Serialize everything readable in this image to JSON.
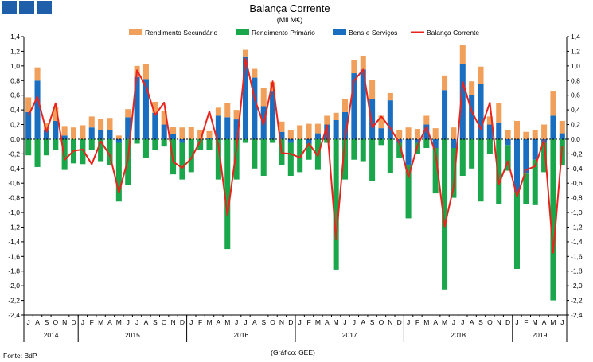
{
  "header": {
    "logo_squares": [
      "#1f5ea8",
      "#1f5ea8",
      "#1f5ea8"
    ]
  },
  "chart_data": {
    "type": "bar",
    "title": "Balança Corrente",
    "subtitle": "(Mil M€)",
    "stacked": true,
    "ylim": [
      -2.4,
      1.4
    ],
    "ytick_step": 0.2,
    "grid": false,
    "legend_position": "top",
    "source": "Fonte: BdP",
    "footnote": "(Gráfico: GEE)",
    "months": [
      "J",
      "A",
      "S",
      "O",
      "N",
      "D",
      "J",
      "F",
      "M",
      "A",
      "M",
      "J",
      "J",
      "A",
      "S",
      "O",
      "N",
      "D",
      "J",
      "F",
      "M",
      "A",
      "M",
      "J",
      "J",
      "A",
      "S",
      "O",
      "N",
      "D",
      "J",
      "F",
      "M",
      "A",
      "M",
      "J",
      "J",
      "A",
      "S",
      "O",
      "N",
      "D",
      "J",
      "F",
      "M",
      "A",
      "M",
      "J",
      "J",
      "A",
      "S",
      "O",
      "N",
      "D",
      "J",
      "F",
      "M",
      "A",
      "M",
      "J"
    ],
    "years": [
      {
        "label": "2014",
        "start": 0,
        "count": 6
      },
      {
        "label": "2015",
        "start": 6,
        "count": 12
      },
      {
        "label": "2016",
        "start": 18,
        "count": 12
      },
      {
        "label": "2017",
        "start": 30,
        "count": 12
      },
      {
        "label": "2018",
        "start": 42,
        "count": 12
      },
      {
        "label": "2019",
        "start": 54,
        "count": 6
      }
    ],
    "series": [
      {
        "name": "Rendimento Secundário",
        "kind": "bar",
        "color": "#f0a05a",
        "values": [
          0.2,
          0.18,
          0.1,
          0.19,
          0.13,
          0.16,
          0.19,
          0.15,
          0.16,
          0.17,
          0.05,
          0.11,
          0.15,
          0.2,
          0.15,
          0.18,
          0.1,
          0.16,
          0.17,
          0.12,
          0.1,
          0.11,
          0.19,
          0.13,
          0.1,
          0.12,
          0.25,
          0.13,
          0.14,
          0.12,
          0.19,
          0.21,
          0.13,
          0.12,
          0.1,
          0.18,
          0.18,
          0.19,
          0.26,
          0.17,
          0.1,
          0.12,
          0.16,
          0.14,
          0.12,
          0.15,
          0.2,
          0.16,
          0.25,
          0.19,
          0.24,
          0.11,
          0.26,
          0.13,
          0.25,
          0.1,
          0.12,
          0.2,
          0.33,
          0.17
        ]
      },
      {
        "name": "Rendimento Primário",
        "kind": "bar",
        "color": "#1aa64a",
        "values": [
          -0.22,
          -0.38,
          -0.22,
          -0.15,
          -0.42,
          -0.33,
          -0.34,
          -0.15,
          -0.3,
          -0.35,
          -0.8,
          -0.62,
          -0.06,
          -0.25,
          -0.15,
          -0.1,
          -0.48,
          -0.5,
          -0.45,
          -0.15,
          -0.15,
          -0.55,
          -1.5,
          -0.55,
          -0.05,
          -0.4,
          -0.5,
          -0.05,
          -0.35,
          -0.45,
          -0.45,
          -0.22,
          -0.42,
          -0.05,
          -1.78,
          -0.55,
          -0.28,
          -0.3,
          -0.57,
          -0.08,
          -0.46,
          -0.2,
          -0.72,
          -0.15,
          -0.12,
          -0.62,
          -2.05,
          -0.68,
          -0.5,
          -0.4,
          -0.85,
          -0.2,
          -0.88,
          -0.35,
          -1.05,
          -0.42,
          -0.62,
          -0.4,
          -2.2,
          -0.35
        ]
      },
      {
        "name": "Bens e Serviços",
        "kind": "bar",
        "color": "#1a6ec0",
        "values": [
          0.37,
          0.8,
          0.12,
          0.25,
          0.05,
          0.0,
          0.0,
          0.16,
          0.12,
          0.12,
          -0.05,
          0.3,
          0.85,
          0.82,
          0.36,
          0.2,
          0.07,
          -0.05,
          0.0,
          0.0,
          0.01,
          0.32,
          0.3,
          0.27,
          1.12,
          0.84,
          0.45,
          0.65,
          0.1,
          -0.05,
          0.0,
          -0.06,
          0.08,
          0.2,
          0.26,
          0.37,
          0.9,
          0.95,
          0.55,
          0.15,
          0.53,
          -0.05,
          -0.36,
          -0.05,
          0.2,
          -0.12,
          0.67,
          -0.12,
          1.03,
          0.6,
          0.75,
          0.2,
          0.23,
          -0.08,
          -0.72,
          -0.47,
          -0.28,
          -0.05,
          0.32,
          0.08
        ]
      },
      {
        "name": "Balança Corrente",
        "kind": "line",
        "color": "#e8241c",
        "values": [
          0.32,
          0.58,
          0.1,
          0.49,
          -0.28,
          -0.16,
          -0.14,
          -0.34,
          -0.03,
          -0.22,
          -0.73,
          -0.28,
          0.94,
          0.72,
          0.33,
          0.5,
          -0.31,
          -0.39,
          -0.26,
          -0.02,
          0.38,
          -0.08,
          -1.04,
          -0.13,
          1.1,
          0.55,
          0.2,
          0.79,
          -0.19,
          -0.2,
          -0.25,
          -0.06,
          -0.23,
          0.19,
          -1.37,
          0.0,
          0.8,
          0.95,
          0.16,
          0.31,
          0.15,
          -0.05,
          -0.52,
          -0.09,
          0.17,
          -0.19,
          -1.19,
          -0.65,
          0.78,
          0.38,
          0.14,
          0.5,
          -0.61,
          -0.3,
          -0.78,
          -0.42,
          -0.37,
          -0.01,
          -1.55,
          -0.1
        ]
      }
    ]
  }
}
